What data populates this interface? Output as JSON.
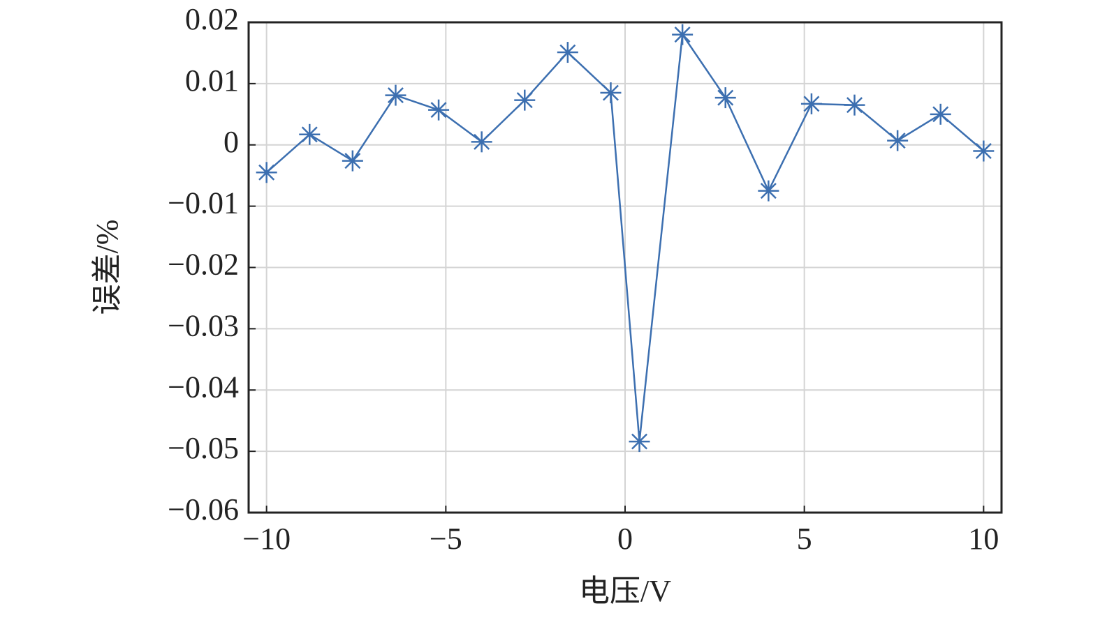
{
  "chart_data": {
    "type": "line",
    "x_label": "电压/V",
    "y_label": "误差/%",
    "xlim": [
      -10.5,
      10.5
    ],
    "xticks": [
      {
        "value": -10,
        "label": "−10"
      },
      {
        "value": -5,
        "label": "−5"
      },
      0,
      5,
      10
    ],
    "ylim": [
      -0.06,
      0.02
    ],
    "yticks": [
      {
        "value": -0.06,
        "label": "−0.06"
      },
      {
        "value": -0.05,
        "label": "−0.05"
      },
      {
        "value": -0.04,
        "label": "−0.04"
      },
      {
        "value": -0.03,
        "label": "−0.03"
      },
      {
        "value": -0.02,
        "label": "−0.02"
      },
      {
        "value": -0.01,
        "label": "−0.01"
      },
      0,
      0.01,
      0.02
    ],
    "grid": true,
    "series": [
      {
        "color": "#3c6fb0",
        "marker": "asterisk",
        "x": [
          -10,
          -8.8,
          -7.6,
          -6.4,
          -5.2,
          -4,
          -2.8,
          -1.6,
          -0.4,
          0.4,
          1.6,
          2.8,
          4,
          5.2,
          6.4,
          7.6,
          8.8,
          10
        ],
        "values": [
          -0.0045,
          0.0017,
          -0.0026,
          0.0081,
          0.0057,
          0.0005,
          0.0073,
          0.0151,
          0.0085,
          -0.0484,
          0.018,
          0.0077,
          -0.0075,
          0.0067,
          0.0065,
          0.0007,
          0.005,
          -0.001
        ]
      }
    ]
  }
}
